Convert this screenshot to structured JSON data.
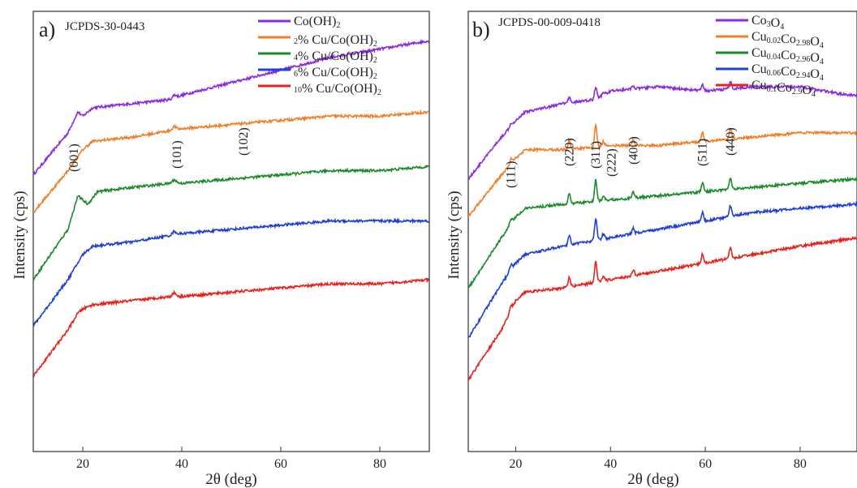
{
  "chart_data": [
    {
      "type": "line",
      "panel_letter": "a)",
      "reference": "JCPDS-30-0443",
      "xlabel": "2θ (deg)",
      "ylabel": "Intensity (cps)",
      "xlim": [
        10,
        90
      ],
      "xticks": [
        "20",
        "40",
        "60",
        "80"
      ],
      "legend_position": "top-right",
      "peak_labels": [
        {
          "label": "(001)",
          "x": 19
        },
        {
          "label": "(101)",
          "x": 38.5
        },
        {
          "label": "(102)",
          "x": 51.5
        }
      ],
      "series": [
        {
          "name": "Co(OH)2",
          "color": "#8a2be2",
          "x": [
            10,
            17,
            19,
            20,
            22,
            30,
            38,
            40,
            50,
            60,
            70,
            80,
            90
          ],
          "y": [
            0.66,
            0.76,
            0.81,
            0.8,
            0.82,
            0.83,
            0.84,
            0.85,
            0.88,
            0.91,
            0.94,
            0.96,
            0.98
          ]
        },
        {
          "name": "2% Cu/Co(OH)2",
          "color": "#f07f2a",
          "x": [
            10,
            17,
            20,
            22,
            30,
            40,
            50,
            60,
            70,
            80,
            90
          ],
          "y": [
            0.57,
            0.67,
            0.72,
            0.74,
            0.75,
            0.77,
            0.78,
            0.79,
            0.8,
            0.8,
            0.81
          ]
        },
        {
          "name": "4% Cu/Co(OH)2",
          "color": "#1a8a2a",
          "x": [
            10,
            17,
            19,
            21,
            23,
            30,
            38,
            40,
            50,
            60,
            70,
            80,
            90
          ],
          "y": [
            0.41,
            0.53,
            0.61,
            0.59,
            0.62,
            0.63,
            0.64,
            0.64,
            0.65,
            0.66,
            0.67,
            0.67,
            0.68
          ]
        },
        {
          "name": "6% Cu/Co(OH)2",
          "color": "#1f3fd6",
          "x": [
            10,
            17,
            20,
            22,
            30,
            40,
            50,
            60,
            70,
            80,
            90
          ],
          "y": [
            0.3,
            0.41,
            0.47,
            0.49,
            0.5,
            0.52,
            0.53,
            0.54,
            0.55,
            0.55,
            0.55
          ]
        },
        {
          "name": "10% Cu/Co(OH)2",
          "color": "#e8211b",
          "x": [
            10,
            17,
            19,
            20,
            22,
            30,
            38,
            40,
            50,
            60,
            70,
            80,
            90
          ],
          "y": [
            0.18,
            0.29,
            0.33,
            0.34,
            0.35,
            0.36,
            0.37,
            0.37,
            0.38,
            0.39,
            0.4,
            0.4,
            0.41
          ]
        }
      ]
    },
    {
      "type": "line",
      "panel_letter": "b)",
      "reference": "JCPDS-00-009-0418",
      "xlabel": "2θ (deg)",
      "ylabel": "Intensity (cps)",
      "xlim": [
        10,
        92
      ],
      "xticks": [
        "20",
        "40",
        "60",
        "80"
      ],
      "legend_position": "top-right",
      "peak_labels": [
        {
          "label": "(111)",
          "x": 19
        },
        {
          "label": "(220)",
          "x": 31.3
        },
        {
          "label": "(311)",
          "x": 36.9
        },
        {
          "label": "(222)",
          "x": 38.5
        },
        {
          "label": "(400)",
          "x": 44.8
        },
        {
          "label": "(511)",
          "x": 59.4
        },
        {
          "label": "(440)",
          "x": 65.3
        }
      ],
      "peaks_2theta": [
        19.0,
        31.3,
        36.9,
        38.5,
        44.8,
        59.4,
        65.3
      ],
      "series": [
        {
          "name": "Co3O4",
          "color": "#8a2be2",
          "x": [
            10,
            17,
            20,
            22,
            30,
            37,
            40,
            50,
            60,
            70,
            80,
            90,
            92
          ],
          "y": [
            0.65,
            0.75,
            0.79,
            0.81,
            0.83,
            0.84,
            0.86,
            0.87,
            0.86,
            0.87,
            0.87,
            0.85,
            0.85
          ]
        },
        {
          "name": "Cu0.02Co2.98O4",
          "color": "#f07f2a",
          "x": [
            10,
            17,
            20,
            22,
            30,
            40,
            50,
            60,
            70,
            80,
            92
          ],
          "y": [
            0.56,
            0.66,
            0.7,
            0.72,
            0.72,
            0.73,
            0.73,
            0.74,
            0.75,
            0.76,
            0.76
          ]
        },
        {
          "name": "Cu0.04Co2.96O4",
          "color": "#1a8a2a",
          "x": [
            10,
            17,
            20,
            22,
            30,
            40,
            50,
            60,
            70,
            80,
            92
          ],
          "y": [
            0.39,
            0.51,
            0.56,
            0.58,
            0.59,
            0.6,
            0.61,
            0.62,
            0.63,
            0.64,
            0.65
          ]
        },
        {
          "name": "Cu0.06Co2.94O4",
          "color": "#1f3fd6",
          "x": [
            10,
            17,
            20,
            22,
            30,
            40,
            50,
            60,
            70,
            80,
            92
          ],
          "y": [
            0.27,
            0.4,
            0.45,
            0.47,
            0.49,
            0.51,
            0.53,
            0.55,
            0.57,
            0.58,
            0.59
          ]
        },
        {
          "name": "Cu0.1Co2.9O4",
          "color": "#e8211b",
          "x": [
            10,
            17,
            20,
            22,
            30,
            40,
            50,
            60,
            70,
            80,
            92
          ],
          "y": [
            0.17,
            0.29,
            0.36,
            0.38,
            0.39,
            0.41,
            0.43,
            0.45,
            0.47,
            0.49,
            0.51
          ]
        }
      ]
    }
  ]
}
